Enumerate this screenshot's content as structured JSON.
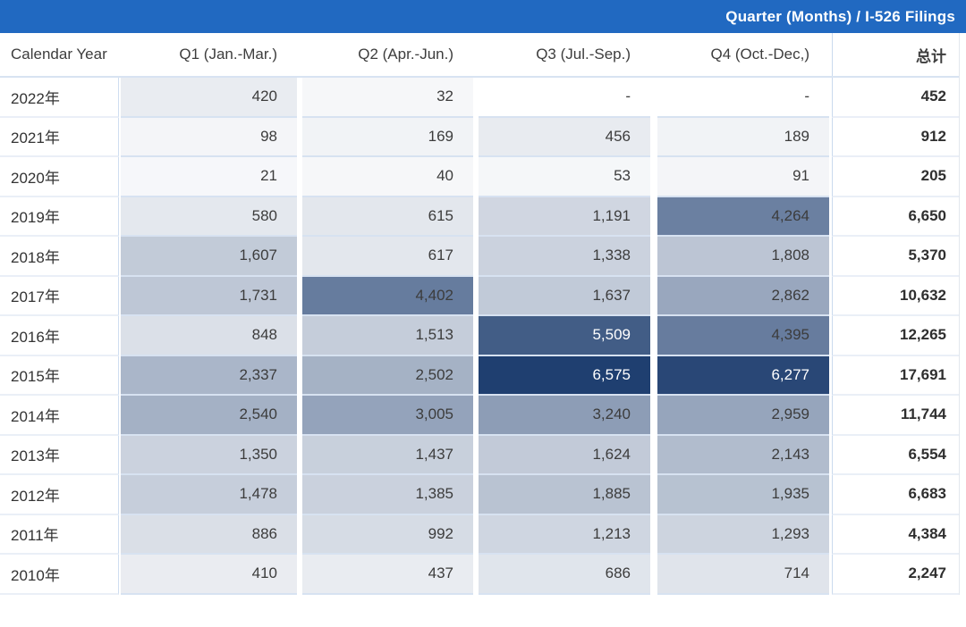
{
  "title_bar": {
    "label": "Quarter (Months) / I-526 Filings",
    "bg_color": "#2169c1"
  },
  "table": {
    "headers": [
      "Calendar Year",
      "Q1 (Jan.-Mar.)",
      "Q2 (Apr.-Jun.)",
      "Q3 (Jul.-Sep.)",
      "Q4 (Oct.-Dec,)",
      "总计"
    ],
    "rows": [
      {
        "year": "2022年",
        "cells": [
          {
            "text": "420",
            "value": 420
          },
          {
            "text": "32",
            "value": 32
          },
          {
            "text": "-",
            "value": null
          },
          {
            "text": "-",
            "value": null
          }
        ],
        "total": "452"
      },
      {
        "year": "2021年",
        "cells": [
          {
            "text": "98",
            "value": 98
          },
          {
            "text": "169",
            "value": 169
          },
          {
            "text": "456",
            "value": 456
          },
          {
            "text": "189",
            "value": 189
          }
        ],
        "total": "912"
      },
      {
        "year": "2020年",
        "cells": [
          {
            "text": "21",
            "value": 21
          },
          {
            "text": "40",
            "value": 40
          },
          {
            "text": "53",
            "value": 53
          },
          {
            "text": "91",
            "value": 91
          }
        ],
        "total": "205"
      },
      {
        "year": "2019年",
        "cells": [
          {
            "text": "580",
            "value": 580
          },
          {
            "text": "615",
            "value": 615
          },
          {
            "text": "1,191",
            "value": 1191
          },
          {
            "text": "4,264",
            "value": 4264
          }
        ],
        "total": "6,650"
      },
      {
        "year": "2018年",
        "cells": [
          {
            "text": "1,607",
            "value": 1607
          },
          {
            "text": "617",
            "value": 617
          },
          {
            "text": "1,338",
            "value": 1338
          },
          {
            "text": "1,808",
            "value": 1808
          }
        ],
        "total": "5,370"
      },
      {
        "year": "2017年",
        "cells": [
          {
            "text": "1,731",
            "value": 1731
          },
          {
            "text": "4,402",
            "value": 4402
          },
          {
            "text": "1,637",
            "value": 1637
          },
          {
            "text": "2,862",
            "value": 2862
          }
        ],
        "total": "10,632"
      },
      {
        "year": "2016年",
        "cells": [
          {
            "text": "848",
            "value": 848
          },
          {
            "text": "1,513",
            "value": 1513
          },
          {
            "text": "5,509",
            "value": 5509
          },
          {
            "text": "4,395",
            "value": 4395
          }
        ],
        "total": "12,265"
      },
      {
        "year": "2015年",
        "cells": [
          {
            "text": "2,337",
            "value": 2337
          },
          {
            "text": "2,502",
            "value": 2502
          },
          {
            "text": "6,575",
            "value": 6575
          },
          {
            "text": "6,277",
            "value": 6277
          }
        ],
        "total": "17,691"
      },
      {
        "year": "2014年",
        "cells": [
          {
            "text": "2,540",
            "value": 2540
          },
          {
            "text": "3,005",
            "value": 3005
          },
          {
            "text": "3,240",
            "value": 3240
          },
          {
            "text": "2,959",
            "value": 2959
          }
        ],
        "total": "11,744"
      },
      {
        "year": "2013年",
        "cells": [
          {
            "text": "1,350",
            "value": 1350
          },
          {
            "text": "1,437",
            "value": 1437
          },
          {
            "text": "1,624",
            "value": 1624
          },
          {
            "text": "2,143",
            "value": 2143
          }
        ],
        "total": "6,554"
      },
      {
        "year": "2012年",
        "cells": [
          {
            "text": "1,478",
            "value": 1478
          },
          {
            "text": "1,385",
            "value": 1385
          },
          {
            "text": "1,885",
            "value": 1885
          },
          {
            "text": "1,935",
            "value": 1935
          }
        ],
        "total": "6,683"
      },
      {
        "year": "2011年",
        "cells": [
          {
            "text": "886",
            "value": 886
          },
          {
            "text": "992",
            "value": 992
          },
          {
            "text": "1,213",
            "value": 1213
          },
          {
            "text": "1,293",
            "value": 1293
          }
        ],
        "total": "4,384"
      },
      {
        "year": "2010年",
        "cells": [
          {
            "text": "410",
            "value": 410
          },
          {
            "text": "437",
            "value": 437
          },
          {
            "text": "686",
            "value": 686
          },
          {
            "text": "714",
            "value": 714
          }
        ],
        "total": "2,247"
      }
    ]
  },
  "heatmap": {
    "low_color": "#f7f8fa",
    "high_color": "#1f3f70",
    "max_value": 6575,
    "white_text_min": 5000
  },
  "chart_data": {
    "type": "heatmap",
    "title": "Quarter (Months) / I-526 Filings",
    "row_axis_label": "Calendar Year",
    "rows": [
      "2022年",
      "2021年",
      "2020年",
      "2019年",
      "2018年",
      "2017年",
      "2016年",
      "2015年",
      "2014年",
      "2013年",
      "2012年",
      "2011年",
      "2010年"
    ],
    "columns": [
      "Q1 (Jan.-Mar.)",
      "Q2 (Apr.-Jun.)",
      "Q3 (Jul.-Sep.)",
      "Q4 (Oct.-Dec,)"
    ],
    "values": [
      [
        420,
        32,
        null,
        null
      ],
      [
        98,
        169,
        456,
        189
      ],
      [
        21,
        40,
        53,
        91
      ],
      [
        580,
        615,
        1191,
        4264
      ],
      [
        1607,
        617,
        1338,
        1808
      ],
      [
        1731,
        4402,
        1637,
        2862
      ],
      [
        848,
        1513,
        5509,
        4395
      ],
      [
        2337,
        2502,
        6575,
        6277
      ],
      [
        2540,
        3005,
        3240,
        2959
      ],
      [
        1350,
        1437,
        1624,
        2143
      ],
      [
        1478,
        1385,
        1885,
        1935
      ],
      [
        886,
        992,
        1213,
        1293
      ],
      [
        410,
        437,
        686,
        714
      ]
    ],
    "totals_label": "总计",
    "totals": [
      452,
      912,
      205,
      6650,
      5370,
      10632,
      12265,
      17691,
      11744,
      6554,
      6683,
      4384,
      2247
    ],
    "color_scale": {
      "low": "#f7f8fa",
      "high": "#1f3f70",
      "domain": [
        0,
        6575
      ]
    },
    "legend_position": "none",
    "grid": false
  }
}
